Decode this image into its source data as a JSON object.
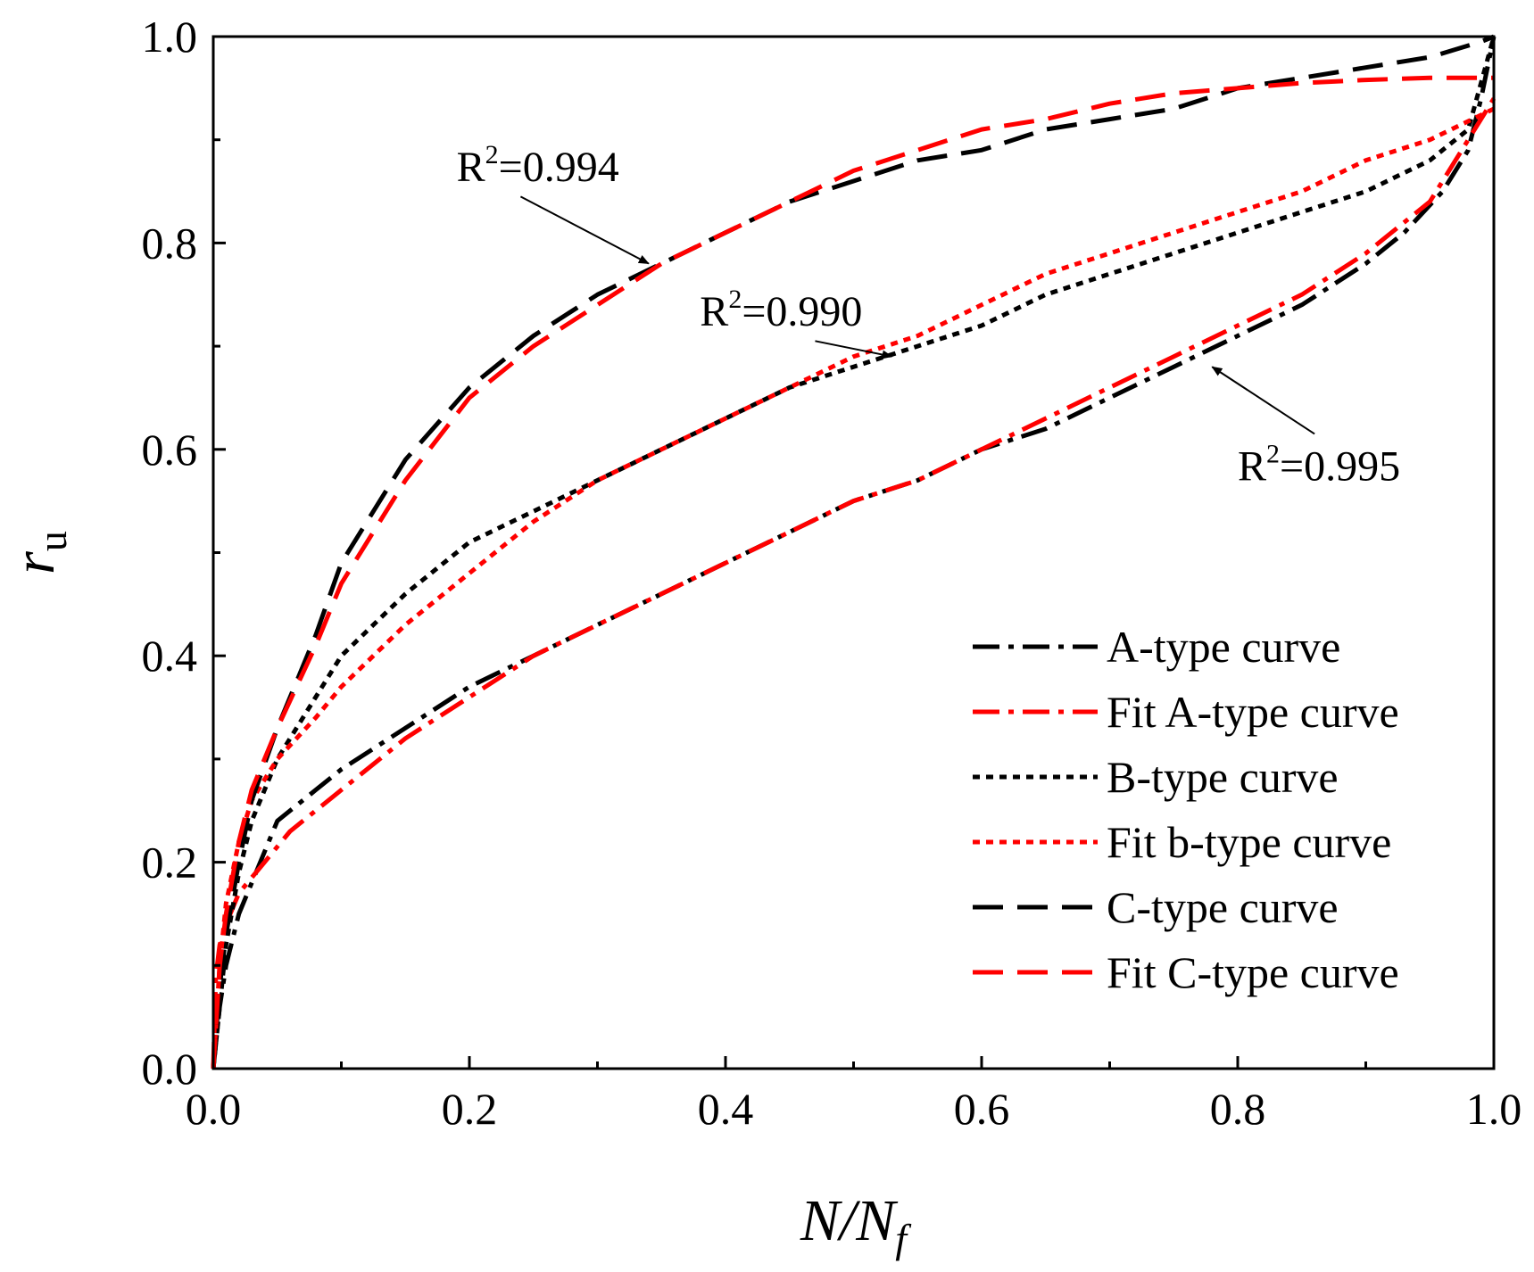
{
  "chart_data": {
    "type": "line",
    "title": "",
    "xlabel": {
      "main": "N/N",
      "sub": "f"
    },
    "ylabel": {
      "main": "r",
      "sub": "u"
    },
    "xlim": [
      0,
      1
    ],
    "ylim": [
      0,
      1
    ],
    "xticks": [
      "0.0",
      "0.2",
      "0.4",
      "0.6",
      "0.8",
      "1.0"
    ],
    "yticks": [
      "0.0",
      "0.2",
      "0.4",
      "0.6",
      "0.8",
      "1.0"
    ],
    "grid": false,
    "legend_position": "bottom-right",
    "series": [
      {
        "name": "A-type curve",
        "color": "#000000",
        "style": "dashdot",
        "x": [
          0,
          0.005,
          0.01,
          0.02,
          0.03,
          0.05,
          0.08,
          0.1,
          0.15,
          0.2,
          0.25,
          0.3,
          0.35,
          0.4,
          0.45,
          0.5,
          0.55,
          0.6,
          0.65,
          0.7,
          0.75,
          0.8,
          0.85,
          0.9,
          0.93,
          0.96,
          0.98,
          0.99,
          1.0
        ],
        "y": [
          0,
          0.06,
          0.1,
          0.15,
          0.18,
          0.24,
          0.27,
          0.29,
          0.33,
          0.37,
          0.4,
          0.43,
          0.46,
          0.49,
          0.52,
          0.55,
          0.57,
          0.6,
          0.62,
          0.65,
          0.68,
          0.71,
          0.74,
          0.78,
          0.81,
          0.85,
          0.89,
          0.94,
          1.0
        ]
      },
      {
        "name": "Fit A-type curve",
        "color": "#ff0000",
        "style": "dashdot",
        "x": [
          0,
          0.002,
          0.005,
          0.01,
          0.02,
          0.04,
          0.06,
          0.08,
          0.1,
          0.15,
          0.2,
          0.25,
          0.3,
          0.35,
          0.4,
          0.45,
          0.5,
          0.55,
          0.6,
          0.65,
          0.7,
          0.75,
          0.8,
          0.85,
          0.9,
          0.95,
          0.98,
          1.0
        ],
        "y": [
          0,
          0.09,
          0.12,
          0.14,
          0.17,
          0.2,
          0.23,
          0.25,
          0.27,
          0.32,
          0.36,
          0.4,
          0.43,
          0.46,
          0.49,
          0.52,
          0.55,
          0.57,
          0.6,
          0.63,
          0.66,
          0.69,
          0.72,
          0.75,
          0.79,
          0.84,
          0.9,
          0.94
        ]
      },
      {
        "name": "B-type curve",
        "color": "#000000",
        "style": "dotted",
        "x": [
          0,
          0.01,
          0.02,
          0.03,
          0.05,
          0.08,
          0.1,
          0.15,
          0.2,
          0.25,
          0.3,
          0.35,
          0.4,
          0.45,
          0.5,
          0.55,
          0.6,
          0.65,
          0.7,
          0.75,
          0.8,
          0.85,
          0.9,
          0.95,
          0.98,
          1.0
        ],
        "y": [
          0,
          0.12,
          0.19,
          0.24,
          0.3,
          0.36,
          0.4,
          0.46,
          0.51,
          0.54,
          0.57,
          0.6,
          0.63,
          0.66,
          0.68,
          0.7,
          0.72,
          0.75,
          0.77,
          0.79,
          0.81,
          0.83,
          0.85,
          0.88,
          0.91,
          1.0
        ]
      },
      {
        "name": "Fit b-type curve",
        "color": "#ff0000",
        "style": "dotted",
        "x": [
          0,
          0.005,
          0.01,
          0.02,
          0.03,
          0.05,
          0.08,
          0.1,
          0.15,
          0.2,
          0.25,
          0.3,
          0.35,
          0.4,
          0.45,
          0.5,
          0.55,
          0.6,
          0.65,
          0.7,
          0.75,
          0.8,
          0.85,
          0.9,
          0.95,
          1.0
        ],
        "y": [
          0,
          0.1,
          0.16,
          0.22,
          0.26,
          0.3,
          0.34,
          0.37,
          0.43,
          0.48,
          0.53,
          0.57,
          0.6,
          0.63,
          0.66,
          0.69,
          0.71,
          0.74,
          0.77,
          0.79,
          0.81,
          0.83,
          0.85,
          0.88,
          0.9,
          0.93
        ]
      },
      {
        "name": "C-type curve",
        "color": "#000000",
        "style": "dashed",
        "x": [
          0,
          0.005,
          0.01,
          0.02,
          0.03,
          0.05,
          0.08,
          0.1,
          0.12,
          0.15,
          0.2,
          0.25,
          0.3,
          0.35,
          0.4,
          0.45,
          0.5,
          0.55,
          0.6,
          0.65,
          0.7,
          0.75,
          0.8,
          0.85,
          0.9,
          0.95,
          0.99,
          1.0
        ],
        "y": [
          0,
          0.08,
          0.13,
          0.2,
          0.26,
          0.33,
          0.42,
          0.49,
          0.53,
          0.59,
          0.66,
          0.71,
          0.75,
          0.78,
          0.81,
          0.84,
          0.86,
          0.88,
          0.89,
          0.91,
          0.92,
          0.93,
          0.95,
          0.96,
          0.97,
          0.98,
          0.995,
          1.0
        ]
      },
      {
        "name": "Fit C-type curve",
        "color": "#ff0000",
        "style": "dashed",
        "x": [
          0,
          0.005,
          0.01,
          0.02,
          0.03,
          0.05,
          0.08,
          0.1,
          0.12,
          0.15,
          0.2,
          0.25,
          0.3,
          0.35,
          0.4,
          0.45,
          0.5,
          0.55,
          0.6,
          0.65,
          0.7,
          0.75,
          0.8,
          0.85,
          0.9,
          0.95,
          0.99,
          1.0
        ],
        "y": [
          0,
          0.1,
          0.15,
          0.22,
          0.27,
          0.33,
          0.41,
          0.47,
          0.51,
          0.57,
          0.65,
          0.7,
          0.74,
          0.78,
          0.81,
          0.84,
          0.87,
          0.89,
          0.91,
          0.92,
          0.935,
          0.945,
          0.95,
          0.955,
          0.958,
          0.96,
          0.96,
          0.96
        ]
      }
    ],
    "annotations": [
      {
        "text_main": "R",
        "text_sup": "2",
        "text_rest": "=0.994",
        "label_x": 0.19,
        "label_y": 0.86,
        "arrow_to_x": 0.34,
        "arrow_to_y": 0.78,
        "arrow_from_x": 0.24,
        "arrow_from_y": 0.845
      },
      {
        "text_main": "R",
        "text_sup": "2",
        "text_rest": "=0.990",
        "label_x": 0.38,
        "label_y": 0.72,
        "arrow_to_x": 0.53,
        "arrow_to_y": 0.69,
        "arrow_from_x": 0.47,
        "arrow_from_y": 0.705
      },
      {
        "text_main": "R",
        "text_sup": "2",
        "text_rest": "=0.995",
        "label_x": 0.8,
        "label_y": 0.57,
        "arrow_to_x": 0.78,
        "arrow_to_y": 0.68,
        "arrow_from_x": 0.86,
        "arrow_from_y": 0.615
      }
    ]
  }
}
